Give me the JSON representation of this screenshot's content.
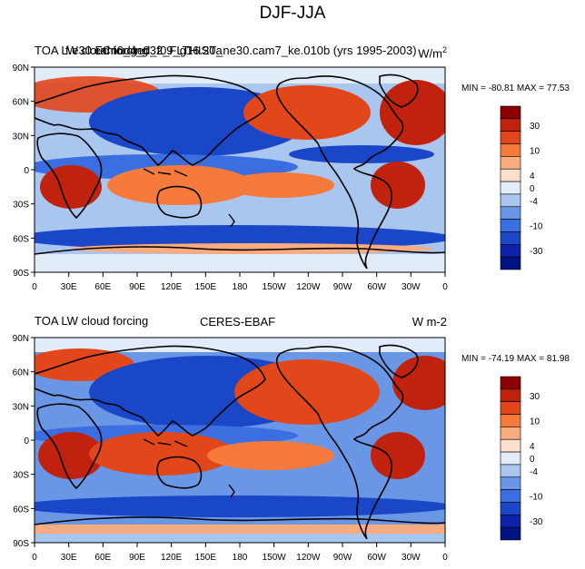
{
  "title": "DJF-JJA",
  "chart_data": [
    {
      "type": "heatmap",
      "left_label": "TOA LW cloud forcing",
      "center_label": "f.e30.FCnudged_f09_g16.20a",
      "model_label": "cam6_4_032_FLTHIST_ne30.cam7_ke.010b (yrs 1995-2003)",
      "units_label": "W/m",
      "units_sup": "2",
      "minmax": "MIN = -80.81 MAX =  77.53",
      "y_ticks": [
        "90N",
        "60N",
        "30N",
        "0",
        "30S",
        "60S",
        "90S"
      ],
      "x_ticks": [
        "0",
        "30E",
        "60E",
        "90E",
        "120E",
        "150E",
        "180",
        "150W",
        "120W",
        "90W",
        "60W",
        "30W",
        "0"
      ],
      "colorbar_levels": [
        "30",
        "10",
        "4",
        "0",
        "-4",
        "-10",
        "-30"
      ],
      "colorbar_colors": [
        "#8b0000",
        "#c1220e",
        "#e2461b",
        "#f57a3c",
        "#fbab7e",
        "#fde0cb",
        "#e2ecf8",
        "#a9c6ef",
        "#6a96e6",
        "#3b6ee0",
        "#1a47c8",
        "#0c22a8",
        "#001380"
      ]
    },
    {
      "type": "heatmap",
      "left_label": "TOA LW cloud forcing",
      "center_label": "CERES-EBAF",
      "units_label": "W m-2",
      "minmax": "MIN = -74.19 MAX =  81.98",
      "y_ticks": [
        "90N",
        "60N",
        "30N",
        "0",
        "30S",
        "60S",
        "90S"
      ],
      "x_ticks": [
        "0",
        "30E",
        "60E",
        "90E",
        "120E",
        "150E",
        "180",
        "150W",
        "120W",
        "90W",
        "60W",
        "30W",
        "0"
      ],
      "colorbar_levels": [
        "30",
        "10",
        "4",
        "0",
        "-4",
        "-10",
        "-30"
      ],
      "colorbar_colors": [
        "#8b0000",
        "#c1220e",
        "#e2461b",
        "#f57a3c",
        "#fbab7e",
        "#fde0cb",
        "#e2ecf8",
        "#a9c6ef",
        "#6a96e6",
        "#3b6ee0",
        "#1a47c8",
        "#0c22a8",
        "#001380"
      ]
    }
  ]
}
